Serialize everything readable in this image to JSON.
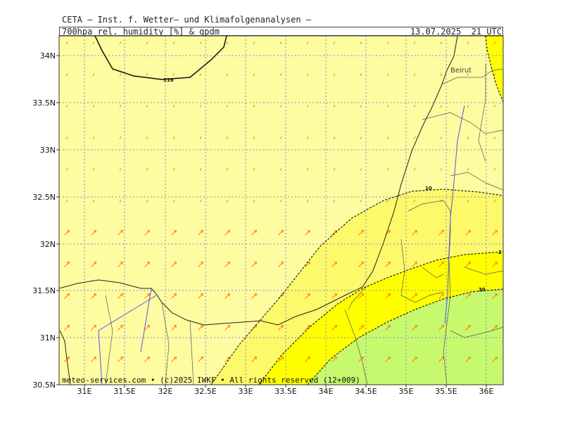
{
  "header": {
    "title": "CETA — Inst. f. Wetter— und Klimafolgenanalysen —",
    "parameter": "700hpa_rel._humidity_[%]_&_gpdm",
    "valid_time": "13.07.2025  21 UTC"
  },
  "map": {
    "lon_labels": [
      "31E",
      "31.5E",
      "32E",
      "32.5E",
      "33E",
      "33.5E",
      "34E",
      "34.5E",
      "35E",
      "35.5E",
      "36E"
    ],
    "lat_labels": [
      "34N",
      "33.5N",
      "33N",
      "32.5N",
      "32N",
      "31.5N",
      "31N",
      "30.5N"
    ],
    "city": "Beirut",
    "contour_labels": {
      "geopot": "316",
      "rh_10": "10",
      "rh_20": "2",
      "rh_30": "30"
    },
    "colors": {
      "rh_lt10": "#fdfca0",
      "rh_10_20": "#fcf96a",
      "rh_20_30": "#ffff00",
      "rh_gt30": "#c6f96e",
      "wind_arrow": "#ff8000",
      "grid": "#8888cc",
      "rivers": "#5555ee"
    }
  },
  "footer": {
    "copyright": "meteo-services.com • (c)2025 IWKF • All rights reserved (12+009)"
  }
}
